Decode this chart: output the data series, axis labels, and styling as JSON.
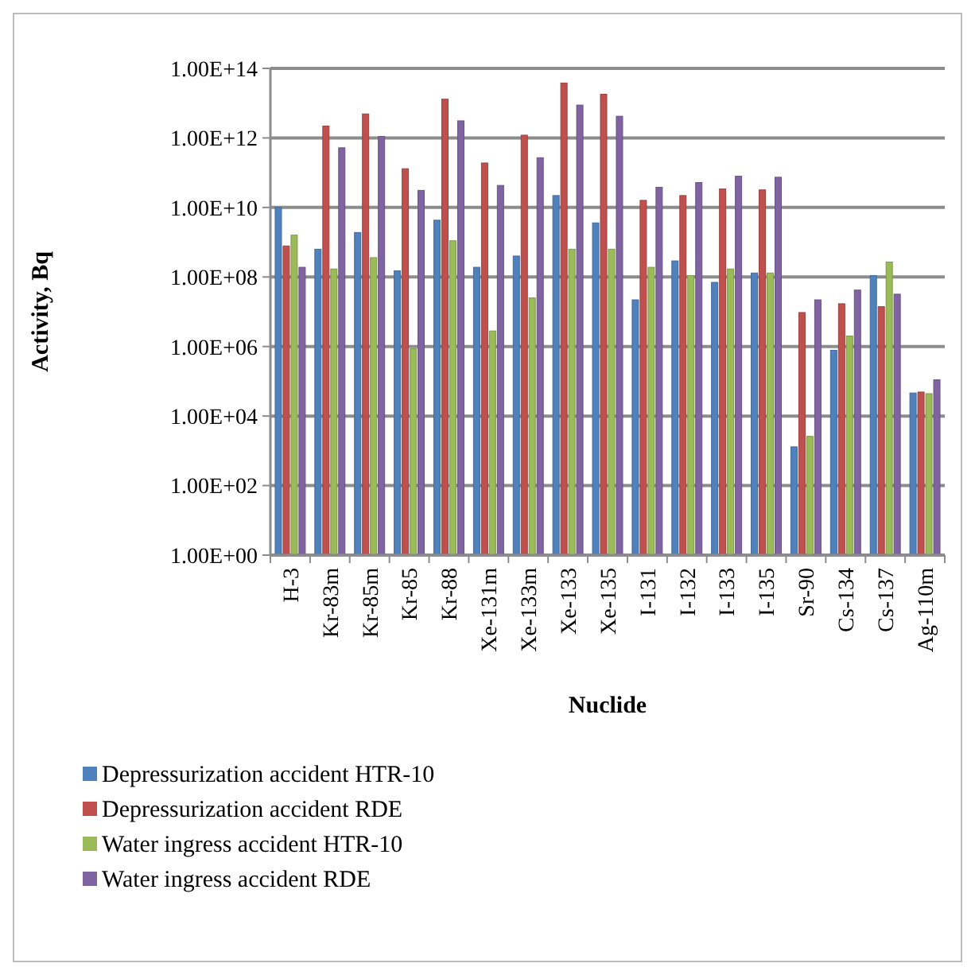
{
  "chart_data": {
    "type": "bar",
    "xlabel": "Nuclide",
    "ylabel": "Activity, Bq",
    "log": "y",
    "grid": "y",
    "legend": "bottom",
    "categories": [
      "H-3",
      "Kr-83m",
      "Kr-85m",
      "Kr-85",
      "Kr-88",
      "Xe-131m",
      "Xe-133m",
      "Xe-133",
      "Xe-135",
      "I-131",
      "I-132",
      "I-133",
      "I-135",
      "Sr-90",
      "Cs-134",
      "Cs-137",
      "Ag-110m"
    ],
    "ylim": [
      1,
      100000000000000.0
    ],
    "yticks": [
      {
        "value": 1,
        "label": "1.00E+00"
      },
      {
        "value": 100,
        "label": "1.00E+02"
      },
      {
        "value": 10000,
        "label": "1.00E+04"
      },
      {
        "value": 1000000,
        "label": "1.00E+06"
      },
      {
        "value": 100000000,
        "label": "1.00E+08"
      },
      {
        "value": 10000000000,
        "label": "1.00E+10"
      },
      {
        "value": 1000000000000,
        "label": "1.00E+12"
      },
      {
        "value": 100000000000000,
        "label": "1.00E+14"
      }
    ],
    "series": [
      {
        "name": "Depressurization accident HTR-10",
        "color": "#4f81bd",
        "values": [
          10000000000.0,
          630000000.0,
          1900000000.0,
          150000000.0,
          4300000000.0,
          190000000.0,
          400000000.0,
          22000000000.0,
          3600000000.0,
          22000000.0,
          290000000.0,
          70000000.0,
          130000000.0,
          1300.0,
          780000.0,
          110000000.0,
          46000.0
        ]
      },
      {
        "name": "Depressurization accident RDE",
        "color": "#c0504d",
        "values": [
          780000000.0,
          2200000000000.0,
          4900000000000.0,
          130000000000.0,
          13000000000000.0,
          190000000000.0,
          1200000000000.0,
          38000000000000.0,
          18000000000000.0,
          16000000000.0,
          22000000000.0,
          34000000000.0,
          32000000000.0,
          9500000.0,
          17000000.0,
          14000000.0,
          49000.0
        ]
      },
      {
        "name": "Water ingress accident HTR-10",
        "color": "#9bbb59",
        "values": [
          1600000000.0,
          170000000.0,
          360000000.0,
          860000.0,
          1100000000.0,
          2800000.0,
          25000000.0,
          630000000.0,
          630000000.0,
          190000000.0,
          110000000.0,
          170000000.0,
          130000000.0,
          2600.0,
          2000000.0,
          270000000.0,
          44000.0
        ]
      },
      {
        "name": "Water ingress accident RDE",
        "color": "#8064a2",
        "values": [
          190000000.0,
          520000000000.0,
          1100000000000.0,
          31000000000.0,
          3100000000000.0,
          43000000000.0,
          270000000000.0,
          8800000000000.0,
          4200000000000.0,
          38000000000.0,
          52000000000.0,
          79000000000.0,
          74000000000.0,
          22000000.0,
          42000000.0,
          32000000.0,
          110000.0
        ]
      }
    ]
  }
}
